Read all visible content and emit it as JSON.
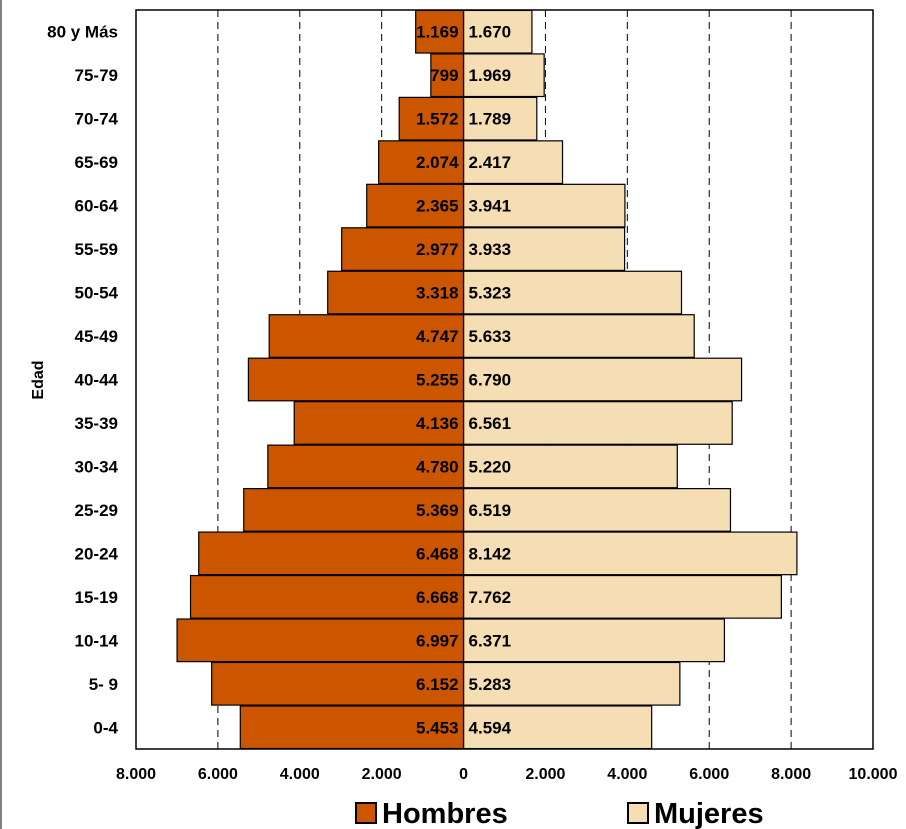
{
  "chart_data": {
    "type": "bar",
    "orientation": "horizontal",
    "layout": "population-pyramid",
    "ylabel": "Edad",
    "categories": [
      "80 y Más",
      "75-79",
      "70-74",
      "65-69",
      "60-64",
      "55-59",
      "50-54",
      "45-49",
      "40-44",
      "35-39",
      "30-34",
      "25-29",
      "20-24",
      "15-19",
      "10-14",
      "5- 9",
      "0-4"
    ],
    "series": [
      {
        "name": "Hombres",
        "color": "#cc5500",
        "side": "left",
        "values": [
          1169,
          799,
          1572,
          2074,
          2365,
          2977,
          3318,
          4747,
          5255,
          4136,
          4780,
          5369,
          6468,
          6668,
          6997,
          6152,
          5453
        ],
        "labels": [
          "1.169",
          "799",
          "1.572",
          "2.074",
          "2.365",
          "2.977",
          "3.318",
          "4.747",
          "5.255",
          "4.136",
          "4.780",
          "5.369",
          "6.468",
          "6.668",
          "6.997",
          "6.152",
          "5.453"
        ]
      },
      {
        "name": "Mujeres",
        "color": "#f5deb3",
        "side": "right",
        "values": [
          1670,
          1969,
          1789,
          2417,
          3941,
          3933,
          5323,
          5633,
          6790,
          6561,
          5220,
          6519,
          8142,
          7762,
          6371,
          5283,
          4594
        ],
        "labels": [
          "1.670",
          "1.969",
          "1.789",
          "2.417",
          "3.941",
          "3.933",
          "5.323",
          "5.633",
          "6.790",
          "6.561",
          "5.220",
          "6.519",
          "8.142",
          "7.762",
          "6.371",
          "5.283",
          "4.594"
        ]
      }
    ],
    "xlim": [
      -8000,
      10000
    ],
    "xticks": [
      -8000,
      -6000,
      -4000,
      -2000,
      0,
      2000,
      4000,
      6000,
      8000,
      10000
    ],
    "xtick_labels": [
      "8.000",
      "6.000",
      "4.000",
      "2.000",
      "0",
      "2.000",
      "4.000",
      "6.000",
      "8.000",
      "10.000"
    ],
    "grid": "vertical-dashed",
    "legend_position": "bottom"
  }
}
